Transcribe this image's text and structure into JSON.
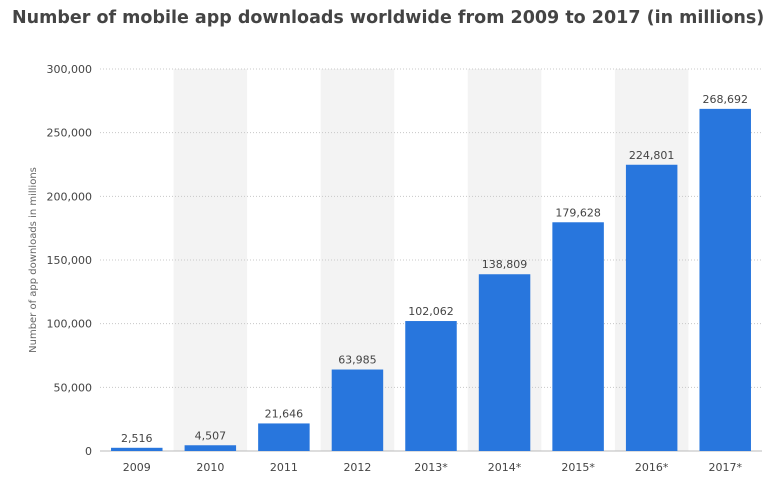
{
  "chart_data": {
    "type": "bar",
    "title": "Number of mobile app downloads worldwide from 2009 to 2017 (in millions)",
    "ylabel": "Number of app downloads in millions",
    "xlabel": "",
    "categories": [
      "2009",
      "2010",
      "2011",
      "2012",
      "2013*",
      "2014*",
      "2015*",
      "2016*",
      "2017*"
    ],
    "values": [
      2516,
      4507,
      21646,
      63985,
      102062,
      138809,
      179628,
      224801,
      268692
    ],
    "value_labels": [
      "2,516",
      "4,507",
      "21,646",
      "63,985",
      "102,062",
      "138,809",
      "179,628",
      "224,801",
      "268,692"
    ],
    "ylim": [
      0,
      300000
    ],
    "yticks": [
      0,
      50000,
      100000,
      150000,
      200000,
      250000,
      300000
    ],
    "ytick_labels": [
      "0",
      "50,000",
      "100,000",
      "150,000",
      "200,000",
      "250,000",
      "300,000"
    ],
    "grid": true,
    "legend": "none",
    "colors": {
      "bar": "#2876dd",
      "band": "#f3f3f3",
      "grid": "#c8c8c8",
      "text": "#444444"
    }
  }
}
